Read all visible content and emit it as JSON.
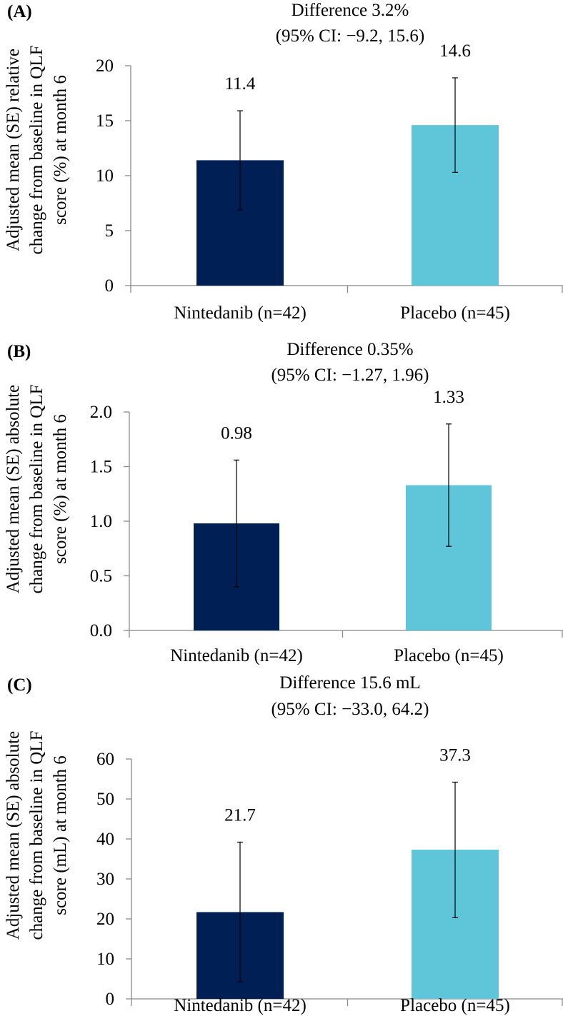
{
  "chart_data": [
    {
      "type": "bar",
      "panel_label": "(A)",
      "title": "Difference 3.2%",
      "subtitle": "(95% CI: −9.2, 15.6)",
      "ylabel_lines": [
        "Adjusted mean (SE) relative",
        "change from baseline in QLF",
        "score (%) at month 6"
      ],
      "xlabel": "",
      "categories": [
        "Nintedanib (n=42)",
        "Placebo (n=45)"
      ],
      "values": [
        11.4,
        14.6
      ],
      "value_labels": [
        "11.4",
        "14.6"
      ],
      "error_low": [
        6.9,
        10.3
      ],
      "error_high": [
        15.9,
        18.9
      ],
      "ylim": [
        0,
        20
      ],
      "yticks": [
        0,
        5,
        10,
        15,
        20
      ],
      "ytick_labels": [
        "0",
        "5",
        "10",
        "15",
        "20"
      ],
      "colors": [
        "#001f54",
        "#5ec6d8"
      ],
      "grid": false,
      "legend": "none"
    },
    {
      "type": "bar",
      "panel_label": "(B)",
      "title": "Difference 0.35%",
      "subtitle": "(95% CI: −1.27, 1.96)",
      "ylabel_lines": [
        "Adjusted mean (SE) absolute",
        "change from baseline in QLF",
        "score (%) at month 6"
      ],
      "xlabel": "",
      "categories": [
        "Nintedanib (n=42)",
        "Placebo (n=45)"
      ],
      "values": [
        0.98,
        1.33
      ],
      "value_labels": [
        "0.98",
        "1.33"
      ],
      "error_low": [
        0.4,
        0.77
      ],
      "error_high": [
        1.56,
        1.89
      ],
      "ylim": [
        0,
        2
      ],
      "yticks": [
        0,
        0.5,
        1,
        1.5,
        2
      ],
      "ytick_labels": [
        "0.0",
        "0.5",
        "1.0",
        "1.5",
        "2.0"
      ],
      "colors": [
        "#001f54",
        "#5ec6d8"
      ],
      "grid": false,
      "legend": "none"
    },
    {
      "type": "bar",
      "panel_label": "(C)",
      "title": "Difference 15.6 mL",
      "subtitle": "(95% CI: −33.0, 64.2)",
      "ylabel_lines": [
        "Adjusted mean (SE) absolute",
        "change from baseline in QLF",
        "score (mL) at month 6"
      ],
      "xlabel": "",
      "categories": [
        "Nintedanib (n=42)",
        "Placebo (n=45)"
      ],
      "values": [
        21.7,
        37.3
      ],
      "value_labels": [
        "21.7",
        "37.3"
      ],
      "error_low": [
        4.2,
        20.3
      ],
      "error_high": [
        39.2,
        54.2
      ],
      "ylim": [
        0,
        60
      ],
      "yticks": [
        0,
        10,
        20,
        30,
        40,
        50,
        60
      ],
      "ytick_labels": [
        "0",
        "10",
        "20",
        "30",
        "40",
        "50",
        "60"
      ],
      "colors": [
        "#001f54",
        "#5ec6d8"
      ],
      "grid": false,
      "legend": "none"
    }
  ]
}
